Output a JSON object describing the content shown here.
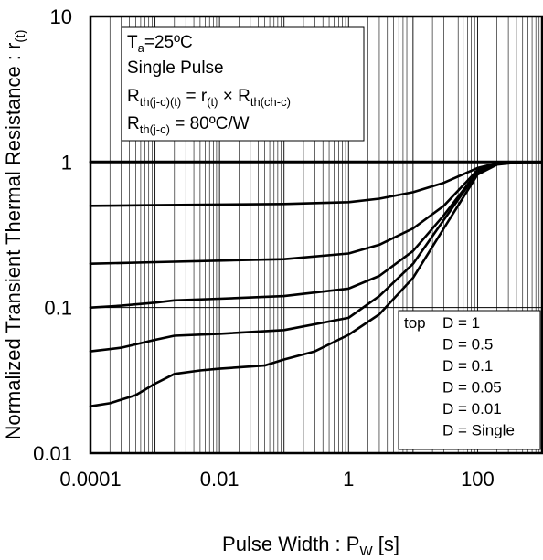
{
  "chart_data": {
    "type": "line",
    "xscale": "log",
    "yscale": "log",
    "xlim": [
      0.0001,
      1000
    ],
    "ylim": [
      0.01,
      10
    ],
    "grid_x": "major-and-minor",
    "grid_y": "major",
    "xlabel": {
      "main": "Pulse Width : P",
      "sub": "W",
      "suffix": " [s]"
    },
    "ylabel": {
      "main": "Normalized Transient Thermal Resistance : r",
      "sub": "(t)"
    },
    "x_ticks": [
      {
        "value": 0.0001,
        "label": "0.0001"
      },
      {
        "value": 0.01,
        "label": "0.01"
      },
      {
        "value": 1,
        "label": "1"
      },
      {
        "value": 100,
        "label": "100"
      }
    ],
    "y_ticks": [
      {
        "value": 10,
        "label": "10"
      },
      {
        "value": 1,
        "label": "1"
      },
      {
        "value": 0.1,
        "label": "0.1"
      },
      {
        "value": 0.01,
        "label": "0.01"
      }
    ],
    "annotation": {
      "ta_main": "T",
      "ta_sub": "a",
      "ta_rest": "=25ºC",
      "line2": "Single Pulse",
      "r1_main": "R",
      "r1_sub": "th(j-c)(t)",
      "r1_eq": " = r",
      "r1_rt_sub": "(t)",
      "r1_times": " × R",
      "r1_ch_sub": "th(ch-c)",
      "r2_main": "R",
      "r2_sub": "th(j-c)",
      "r2_rest": " = 80ºC/W"
    },
    "legend": {
      "placement": "bottom-right",
      "header": "top",
      "entries": [
        "D = 1",
        "D = 0.5",
        "D = 0.1",
        "D = 0.05",
        "D = 0.01",
        "D = Single"
      ]
    },
    "series": [
      {
        "name": "D = 1",
        "x": [
          0.0001,
          1000
        ],
        "y": [
          1,
          1
        ]
      },
      {
        "name": "D = 0.5",
        "x": [
          0.0001,
          0.001,
          0.01,
          0.1,
          1,
          3,
          10,
          30,
          100,
          200,
          500,
          1000
        ],
        "y": [
          0.5,
          0.505,
          0.51,
          0.515,
          0.53,
          0.56,
          0.62,
          0.72,
          0.91,
          0.98,
          1,
          1
        ]
      },
      {
        "name": "D = 0.1",
        "x": [
          0.0001,
          0.001,
          0.01,
          0.1,
          1,
          3,
          10,
          30,
          100,
          200,
          500,
          1000
        ],
        "y": [
          0.2,
          0.205,
          0.21,
          0.215,
          0.235,
          0.27,
          0.35,
          0.5,
          0.88,
          0.97,
          1,
          1
        ]
      },
      {
        "name": "D = 0.05",
        "x": [
          0.0001,
          0.0003,
          0.001,
          0.002,
          0.01,
          0.1,
          1,
          3,
          10,
          30,
          100,
          200,
          500,
          1000
        ],
        "y": [
          0.1,
          0.103,
          0.108,
          0.112,
          0.115,
          0.12,
          0.135,
          0.165,
          0.245,
          0.43,
          0.86,
          0.97,
          1,
          1
        ]
      },
      {
        "name": "D = 0.01",
        "x": [
          0.0001,
          0.0003,
          0.001,
          0.002,
          0.01,
          0.1,
          1,
          3,
          10,
          30,
          100,
          200,
          500,
          1000
        ],
        "y": [
          0.05,
          0.053,
          0.06,
          0.064,
          0.066,
          0.07,
          0.085,
          0.12,
          0.2,
          0.4,
          0.85,
          0.97,
          1,
          1
        ]
      },
      {
        "name": "D = Single",
        "x": [
          0.0001,
          0.0002,
          0.0005,
          0.001,
          0.002,
          0.005,
          0.01,
          0.05,
          0.1,
          0.3,
          1,
          3,
          10,
          30,
          100,
          200,
          500,
          1000
        ],
        "y": [
          0.021,
          0.022,
          0.025,
          0.03,
          0.035,
          0.037,
          0.038,
          0.04,
          0.044,
          0.05,
          0.065,
          0.09,
          0.16,
          0.35,
          0.82,
          0.96,
          1,
          1
        ]
      }
    ]
  }
}
